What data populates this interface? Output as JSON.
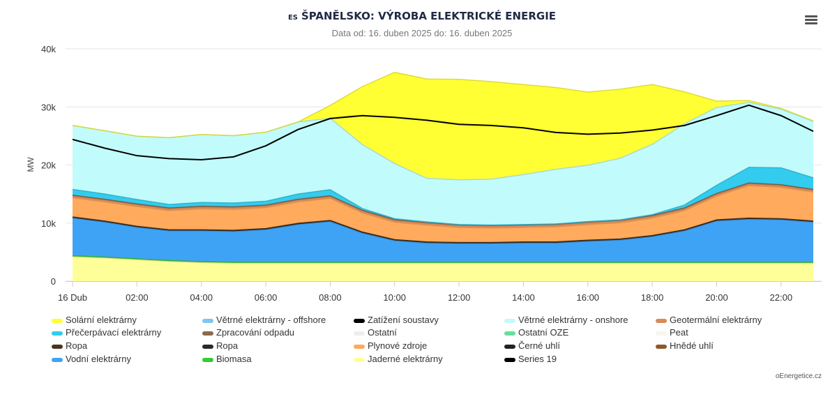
{
  "chart_data": {
    "type": "area",
    "title_prefix": "ES",
    "title": "ŠPANĚLSKO: VÝROBA ELEKTRICKÉ ENERGIE",
    "subtitle": "Data od: 16. duben 2025 do: 16. duben 2025",
    "ylabel": "MW",
    "ylim": [
      0,
      40000
    ],
    "yticks": [
      0,
      10000,
      20000,
      30000,
      40000
    ],
    "ytick_labels": [
      "0",
      "10k",
      "20k",
      "30k",
      "40k"
    ],
    "x": [
      0,
      1,
      2,
      3,
      4,
      5,
      6,
      7,
      8,
      9,
      10,
      11,
      12,
      13,
      14,
      15,
      16,
      17,
      18,
      19,
      20,
      21,
      22,
      23
    ],
    "xticks": [
      0,
      2,
      4,
      6,
      8,
      10,
      12,
      14,
      16,
      18,
      20,
      22
    ],
    "xtick_labels": [
      "16 Dub",
      "02:00",
      "04:00",
      "06:00",
      "08:00",
      "10:00",
      "12:00",
      "14:00",
      "16:00",
      "18:00",
      "20:00",
      "22:00"
    ],
    "grid": true,
    "legend_position": "bottom",
    "stacked_series": [
      {
        "name": "Jaderné elektrárny",
        "color": "#ffff99",
        "values": [
          4200,
          4000,
          3700,
          3400,
          3200,
          3100,
          3100,
          3100,
          3100,
          3100,
          3100,
          3100,
          3100,
          3100,
          3100,
          3100,
          3100,
          3100,
          3100,
          3100,
          3100,
          3100,
          3100,
          3100
        ]
      },
      {
        "name": "Biomasa",
        "color": "#33cc33",
        "values": [
          150,
          150,
          150,
          150,
          150,
          150,
          150,
          150,
          150,
          150,
          150,
          150,
          150,
          150,
          150,
          150,
          150,
          150,
          150,
          150,
          150,
          150,
          150,
          150
        ]
      },
      {
        "name": "Vodní elektrárny",
        "color": "#3fa3f5",
        "values": [
          6500,
          6000,
          5400,
          5100,
          5300,
          5300,
          5600,
          6500,
          7000,
          5000,
          3700,
          3300,
          3200,
          3200,
          3300,
          3300,
          3600,
          3800,
          4400,
          5400,
          7100,
          7400,
          7300,
          6900
        ]
      },
      {
        "name": "Černé uhlí",
        "color": "#222222",
        "values": [
          150,
          150,
          150,
          150,
          150,
          150,
          150,
          150,
          150,
          150,
          150,
          150,
          150,
          150,
          150,
          150,
          150,
          150,
          150,
          150,
          150,
          150,
          150,
          150
        ]
      },
      {
        "name": "Ropa",
        "color": "#4a3522",
        "values": [
          50,
          50,
          50,
          50,
          50,
          50,
          50,
          50,
          50,
          50,
          50,
          50,
          50,
          50,
          50,
          50,
          50,
          50,
          50,
          50,
          50,
          50,
          50,
          50
        ]
      },
      {
        "name": "Plynové zdroje",
        "color": "#ffaa5c",
        "values": [
          3300,
          3300,
          3400,
          3300,
          3600,
          3600,
          3600,
          3700,
          3800,
          3300,
          3000,
          2900,
          2600,
          2500,
          2500,
          2600,
          2700,
          2800,
          3000,
          3300,
          4100,
          5600,
          5400,
          5000
        ]
      },
      {
        "name": "Geotermální elektrárny",
        "color": "#d98a5a",
        "values": [
          350,
          350,
          350,
          350,
          350,
          350,
          350,
          350,
          350,
          350,
          350,
          350,
          350,
          350,
          350,
          350,
          350,
          350,
          350,
          350,
          350,
          350,
          350,
          350
        ]
      },
      {
        "name": "Zpracování odpadu",
        "color": "#8a6b4a",
        "values": [
          100,
          100,
          100,
          100,
          100,
          100,
          100,
          100,
          100,
          100,
          100,
          100,
          100,
          100,
          100,
          100,
          100,
          100,
          100,
          100,
          100,
          100,
          100,
          100
        ]
      },
      {
        "name": "Přečerpávací elektrárny",
        "color": "#33ccee",
        "values": [
          1000,
          900,
          750,
          600,
          650,
          650,
          650,
          900,
          1050,
          300,
          150,
          100,
          50,
          50,
          50,
          50,
          50,
          50,
          150,
          500,
          1400,
          2700,
          2900,
          2000
        ]
      },
      {
        "name": "Větrné elektrárny - onshore",
        "color": "#c2fbfb",
        "values": [
          11000,
          10900,
          10900,
          11500,
          11700,
          11600,
          11900,
          12400,
          12300,
          11000,
          9500,
          7500,
          7700,
          7900,
          8600,
          9400,
          9700,
          10600,
          12100,
          14000,
          13400,
          11200,
          10100,
          9700
        ]
      },
      {
        "name": "Solární elektrárny",
        "color": "#ffff33",
        "values": [
          0,
          0,
          0,
          0,
          0,
          0,
          0,
          0,
          2200,
          10000,
          15700,
          17100,
          17300,
          16800,
          15500,
          14100,
          12600,
          11900,
          10300,
          5500,
          1100,
          300,
          150,
          100
        ]
      }
    ],
    "line_series": [
      {
        "name": "Zatížení soustavy",
        "color": "#000000",
        "values": [
          24400,
          22900,
          21600,
          21100,
          20900,
          21400,
          23300,
          26100,
          28000,
          28500,
          28200,
          27700,
          27000,
          26800,
          26400,
          25600,
          25300,
          25500,
          26000,
          26800,
          28500,
          30300,
          28500,
          25800
        ]
      }
    ],
    "legend_entries": [
      {
        "label": "Solární elektrárny",
        "color": "#ffff33"
      },
      {
        "label": "Větrné elektrárny - offshore",
        "color": "#7cc8ee"
      },
      {
        "label": "Zatížení soustavy",
        "color": "#000000",
        "is_line": true
      },
      {
        "label": "Větrné elektrárny - onshore",
        "color": "#c2fbfb"
      },
      {
        "label": "Geotermální elektrárny",
        "color": "#d98a5a"
      },
      {
        "label": "Přečerpávací elektrárny",
        "color": "#33ccee"
      },
      {
        "label": "Zpracování odpadu",
        "color": "#8a6b4a"
      },
      {
        "label": "Ostatní",
        "color": "#eeeeee"
      },
      {
        "label": "Ostatní OZE",
        "color": "#66e09a"
      },
      {
        "label": "Peat",
        "color": "#f6f6ee"
      },
      {
        "label": "Ropa",
        "color": "#4a3522"
      },
      {
        "label": "Ropa",
        "color": "#2a2a2a"
      },
      {
        "label": "Plynové zdroje",
        "color": "#ffaa5c"
      },
      {
        "label": "Černé uhlí",
        "color": "#222222"
      },
      {
        "label": "Hnědé uhlí",
        "color": "#8b5a2b"
      },
      {
        "label": "Vodní elektrárny",
        "color": "#3fa3f5"
      },
      {
        "label": "Biomasa",
        "color": "#33cc33"
      },
      {
        "label": "Jaderné elektrárny",
        "color": "#ffff99"
      },
      {
        "label": "Series 19",
        "color": "#000000"
      }
    ]
  },
  "credit": "oEnergetice.cz",
  "menu_icon": "hamburger-menu-icon"
}
